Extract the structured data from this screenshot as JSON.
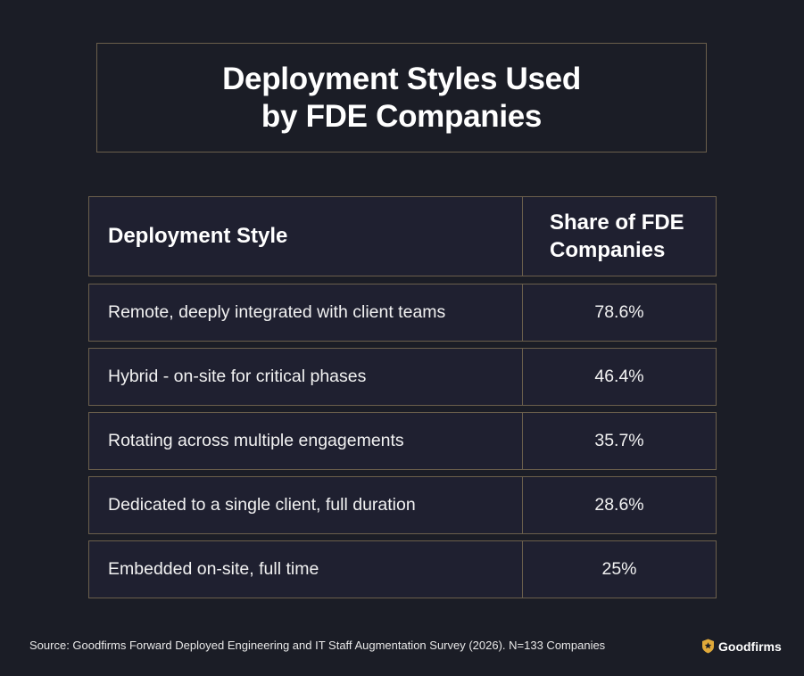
{
  "chart_data": {
    "type": "table",
    "title_lines": [
      "Deployment Styles Used",
      "by FDE Companies"
    ],
    "columns": [
      "Deployment Style",
      "Share of FDE Companies"
    ],
    "header_col2_lines": [
      "Share of FDE",
      "Companies"
    ],
    "rows": [
      {
        "style": "Remote, deeply integrated with client teams",
        "share": "78.6%"
      },
      {
        "style": "Hybrid - on-site for critical phases",
        "share": "46.4%"
      },
      {
        "style": "Rotating across multiple engagements",
        "share": "35.7%"
      },
      {
        "style": "Dedicated to a single client, full duration",
        "share": "28.6%"
      },
      {
        "style": "Embedded on-site, full time",
        "share": "25%"
      }
    ]
  },
  "footer": {
    "source": "Source: Goodfirms Forward Deployed Engineering and IT Staff Augmentation Survey (2026). N=133 Companies",
    "brand_name": "Goodfirms",
    "brand_icon": "goodfirms-logo-icon"
  },
  "colors": {
    "background": "#1b1d26",
    "cell_fill": "#1f2030",
    "border": "#6b5f4c",
    "logo_gold": "#e0a93a"
  }
}
